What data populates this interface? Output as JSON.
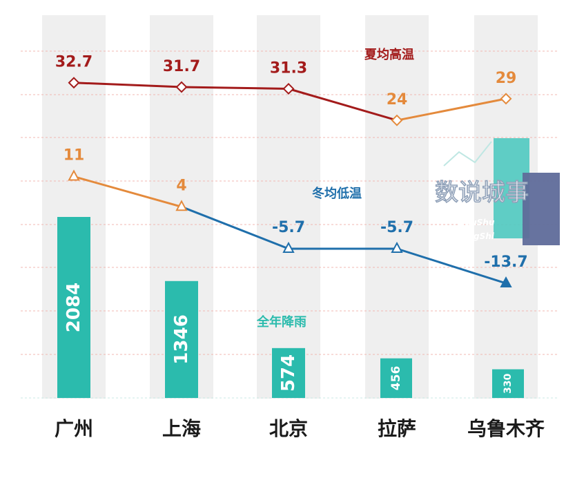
{
  "chart_data": {
    "type": "bar+line",
    "categories": [
      "广州",
      "上海",
      "北京",
      "拉萨",
      "乌鲁木齐"
    ],
    "bars": {
      "name": "全年降雨",
      "values": [
        2084,
        1346,
        574,
        456,
        330
      ],
      "color": "#2bbbad"
    },
    "series": [
      {
        "name": "夏均高温",
        "values": [
          32.7,
          31.7,
          31.3,
          24,
          29
        ],
        "color": "#a31b1b",
        "alt_color": "#e48a3c"
      },
      {
        "name": "冬均低温",
        "values": [
          11,
          4,
          -5.7,
          -5.7,
          -13.7
        ],
        "color": "#1f6fab",
        "alt_color": "#e48a3c"
      }
    ]
  },
  "watermark": {
    "text": "数说城事",
    "sub1": "ShuShu",
    "sub2": "ChengShi"
  },
  "colors": {
    "column_bg": "#efefef",
    "gridline": "#f2b7b2",
    "bar": "#2bbbad",
    "summer": "#a31b1b",
    "winter": "#1f6fab",
    "highlight": "#e48a3c",
    "watermark_teal": "#4fc9c0",
    "watermark_slate": "#5f6b9a"
  }
}
